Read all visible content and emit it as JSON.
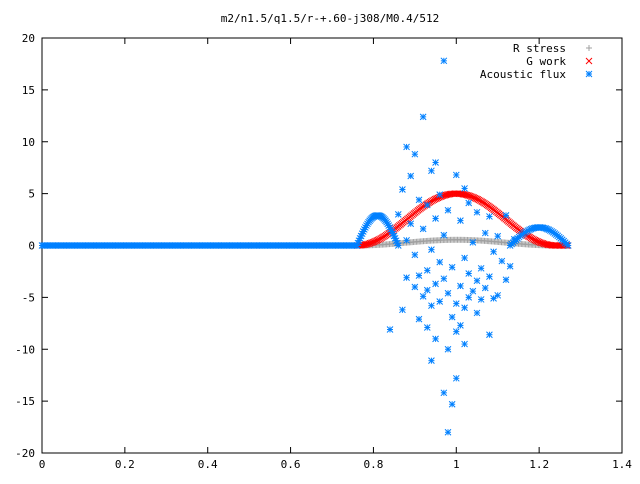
{
  "chart_data": {
    "type": "scatter",
    "title": "m2/n1.5/q1.5/r-+.60-j308/M0.4/512",
    "xlabel": "",
    "ylabel": "",
    "xlim": [
      0,
      1.4
    ],
    "ylim": [
      -20,
      20
    ],
    "xticks": [
      0,
      0.2,
      0.4,
      0.6,
      0.8,
      1,
      1.2,
      1.4
    ],
    "xtick_labels": [
      "0",
      "0.2",
      "0.4",
      "0.6",
      "0.8",
      "1",
      "1.2",
      "1.4"
    ],
    "yticks": [
      -20,
      -15,
      -10,
      -5,
      0,
      5,
      10,
      15,
      20
    ],
    "ytick_labels": [
      "-20",
      "-15",
      "-10",
      "-5",
      "0",
      "5",
      "10",
      "15",
      "20"
    ],
    "grid": false,
    "legend_position": "top-right",
    "series": [
      {
        "name": "R stress",
        "color": "#a0a0a0",
        "marker": "plus",
        "segments": [
          {
            "x_start": 0.0,
            "x_end": 0.76,
            "count": 120,
            "profile": "flat",
            "amp": 0
          },
          {
            "x_start": 0.76,
            "x_end": 1.27,
            "count": 150,
            "profile": "bump",
            "center": 1.0,
            "width": 0.24,
            "amp": 0.55
          }
        ]
      },
      {
        "name": "G work",
        "color": "#ff0000",
        "marker": "x",
        "segments": [
          {
            "x_start": 0.76,
            "x_end": 1.27,
            "count": 160,
            "profile": "bump",
            "center": 1.0,
            "width": 0.24,
            "amp": 5.0
          }
        ]
      },
      {
        "name": "Acoustic flux",
        "color": "#0080ff",
        "marker": "star",
        "segments": [
          {
            "x_start": 0.0,
            "x_end": 0.76,
            "count": 200,
            "profile": "flat",
            "amp": 0
          },
          {
            "x_start": 0.76,
            "x_end": 0.86,
            "count": 40,
            "profile": "arch",
            "amp": 2.9
          },
          {
            "x_start": 1.13,
            "x_end": 1.27,
            "count": 40,
            "profile": "arch",
            "amp": 1.75
          }
        ],
        "points": [
          [
            0.97,
            17.8
          ],
          [
            0.92,
            12.4
          ],
          [
            0.88,
            9.5
          ],
          [
            0.9,
            8.8
          ],
          [
            0.95,
            8.0
          ],
          [
            0.94,
            7.2
          ],
          [
            1.0,
            6.8
          ],
          [
            0.89,
            6.7
          ],
          [
            0.87,
            5.4
          ],
          [
            1.02,
            5.5
          ],
          [
            0.96,
            4.9
          ],
          [
            0.91,
            4.4
          ],
          [
            1.03,
            4.1
          ],
          [
            0.93,
            3.9
          ],
          [
            0.98,
            3.4
          ],
          [
            0.86,
            3.0
          ],
          [
            1.05,
            3.2
          ],
          [
            0.95,
            2.6
          ],
          [
            1.08,
            2.8
          ],
          [
            0.89,
            2.1
          ],
          [
            1.01,
            2.4
          ],
          [
            1.12,
            2.9
          ],
          [
            0.92,
            1.6
          ],
          [
            1.07,
            1.2
          ],
          [
            0.97,
            1.0
          ],
          [
            1.1,
            0.9
          ],
          [
            0.88,
            0.5
          ],
          [
            1.14,
            0.6
          ],
          [
            1.04,
            0.3
          ],
          [
            0.94,
            -0.4
          ],
          [
            1.09,
            -0.6
          ],
          [
            0.9,
            -0.9
          ],
          [
            1.02,
            -1.2
          ],
          [
            0.96,
            -1.6
          ],
          [
            1.11,
            -1.5
          ],
          [
            0.99,
            -2.1
          ],
          [
            1.06,
            -2.2
          ],
          [
            0.93,
            -2.4
          ],
          [
            1.13,
            -2.0
          ],
          [
            1.03,
            -2.7
          ],
          [
            0.91,
            -2.9
          ],
          [
            1.08,
            -3.0
          ],
          [
            0.97,
            -3.2
          ],
          [
            0.88,
            -3.1
          ],
          [
            1.05,
            -3.4
          ],
          [
            1.12,
            -3.3
          ],
          [
            0.95,
            -3.7
          ],
          [
            1.01,
            -3.9
          ],
          [
            0.9,
            -4.0
          ],
          [
            1.07,
            -4.1
          ],
          [
            0.93,
            -4.3
          ],
          [
            1.04,
            -4.4
          ],
          [
            0.98,
            -4.6
          ],
          [
            1.1,
            -4.8
          ],
          [
            0.92,
            -4.9
          ],
          [
            1.03,
            -5.0
          ],
          [
            1.06,
            -5.2
          ],
          [
            0.96,
            -5.4
          ],
          [
            1.0,
            -5.6
          ],
          [
            1.09,
            -5.1
          ],
          [
            0.94,
            -5.8
          ],
          [
            1.02,
            -6.0
          ],
          [
            0.87,
            -6.2
          ],
          [
            1.05,
            -6.5
          ],
          [
            0.99,
            -6.9
          ],
          [
            0.91,
            -7.1
          ],
          [
            1.01,
            -7.7
          ],
          [
            0.93,
            -7.9
          ],
          [
            0.84,
            -8.1
          ],
          [
            1.0,
            -8.3
          ],
          [
            1.08,
            -8.6
          ],
          [
            0.95,
            -9.0
          ],
          [
            1.02,
            -9.5
          ],
          [
            0.98,
            -10.0
          ],
          [
            0.94,
            -11.1
          ],
          [
            1.0,
            -12.8
          ],
          [
            0.97,
            -14.2
          ],
          [
            0.99,
            -15.3
          ],
          [
            0.98,
            -18.0
          ]
        ]
      }
    ]
  }
}
